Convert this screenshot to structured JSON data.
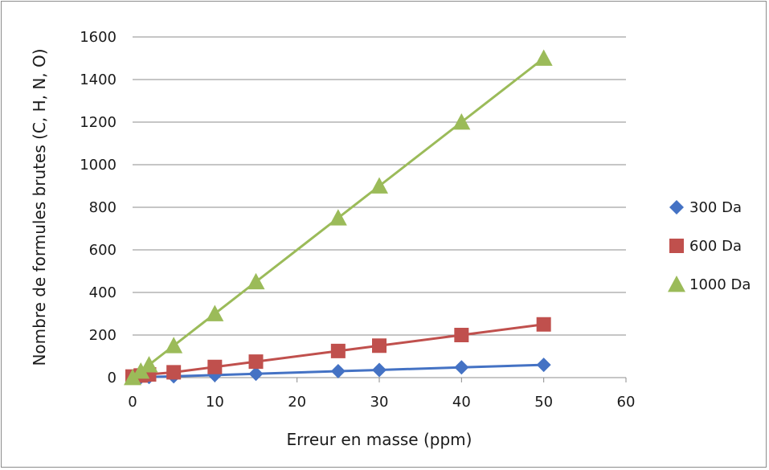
{
  "chart_data": {
    "type": "line",
    "title": "",
    "xlabel": "Erreur en masse (ppm)",
    "ylabel": "Nombre de formules brutes (C, H, N, O)",
    "xlim": [
      0,
      60
    ],
    "ylim": [
      0,
      1600
    ],
    "xticks": [
      0,
      10,
      20,
      30,
      40,
      50,
      60
    ],
    "yticks": [
      0,
      200,
      400,
      600,
      800,
      1000,
      1200,
      1400,
      1600
    ],
    "grid": "horizontal",
    "legend_position": "right",
    "series": [
      {
        "name": "300 Da",
        "color": "#4472c4",
        "marker": "diamond",
        "points": [
          [
            0,
            1
          ],
          [
            1,
            2
          ],
          [
            2,
            3
          ],
          [
            5,
            6
          ],
          [
            10,
            12
          ],
          [
            15,
            18
          ],
          [
            25,
            30
          ],
          [
            30,
            36
          ],
          [
            40,
            48
          ],
          [
            50,
            60
          ]
        ]
      },
      {
        "name": "600 Da",
        "color": "#c0504d",
        "marker": "square",
        "points": [
          [
            0,
            5
          ],
          [
            1,
            10
          ],
          [
            2,
            15
          ],
          [
            5,
            25
          ],
          [
            10,
            50
          ],
          [
            15,
            75
          ],
          [
            25,
            125
          ],
          [
            30,
            150
          ],
          [
            40,
            200
          ],
          [
            50,
            250
          ]
        ]
      },
      {
        "name": "1000 Da",
        "color": "#9bbb59",
        "marker": "triangle",
        "points": [
          [
            0,
            0
          ],
          [
            1,
            30
          ],
          [
            2,
            60
          ],
          [
            5,
            150
          ],
          [
            10,
            300
          ],
          [
            15,
            450
          ],
          [
            25,
            750
          ],
          [
            30,
            900
          ],
          [
            40,
            1200
          ],
          [
            50,
            1500
          ]
        ]
      }
    ]
  }
}
